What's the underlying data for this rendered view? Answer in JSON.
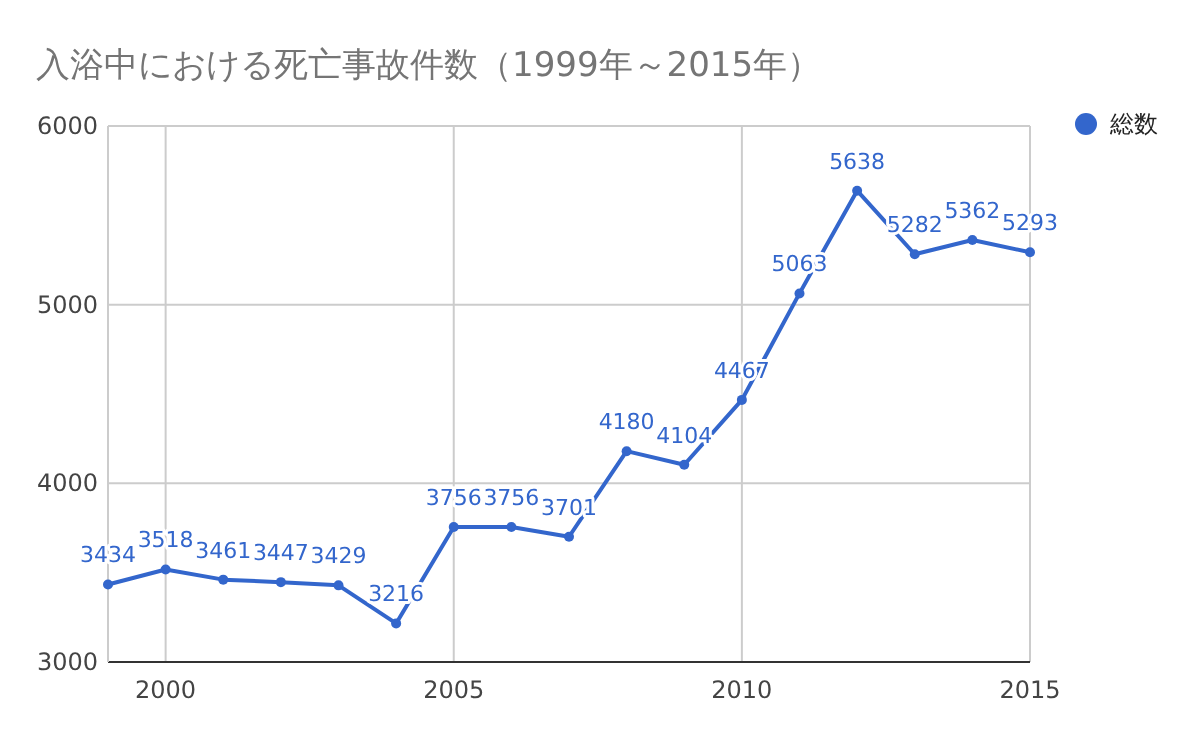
{
  "chart_data": {
    "type": "line",
    "title": "入浴中における死亡事故件数（1999年～2015年）",
    "x": [
      1999,
      2000,
      2001,
      2002,
      2003,
      2004,
      2005,
      2006,
      2007,
      2008,
      2009,
      2010,
      2011,
      2012,
      2013,
      2014,
      2015
    ],
    "series": [
      {
        "name": "総数",
        "color": "#3366cc",
        "values": [
          3434,
          3518,
          3461,
          3447,
          3429,
          3216,
          3756,
          3756,
          3701,
          4180,
          4104,
          4467,
          5063,
          5638,
          5282,
          5362,
          5293
        ]
      }
    ],
    "xlim": [
      1999,
      2015
    ],
    "xticks": [
      2000,
      2005,
      2010,
      2015
    ],
    "ylim": [
      3000,
      6000
    ],
    "yticks": [
      3000,
      4000,
      5000,
      6000
    ],
    "grid": true,
    "legend": "right",
    "marker": "circle",
    "line_style": "solid",
    "data_labels": true
  }
}
